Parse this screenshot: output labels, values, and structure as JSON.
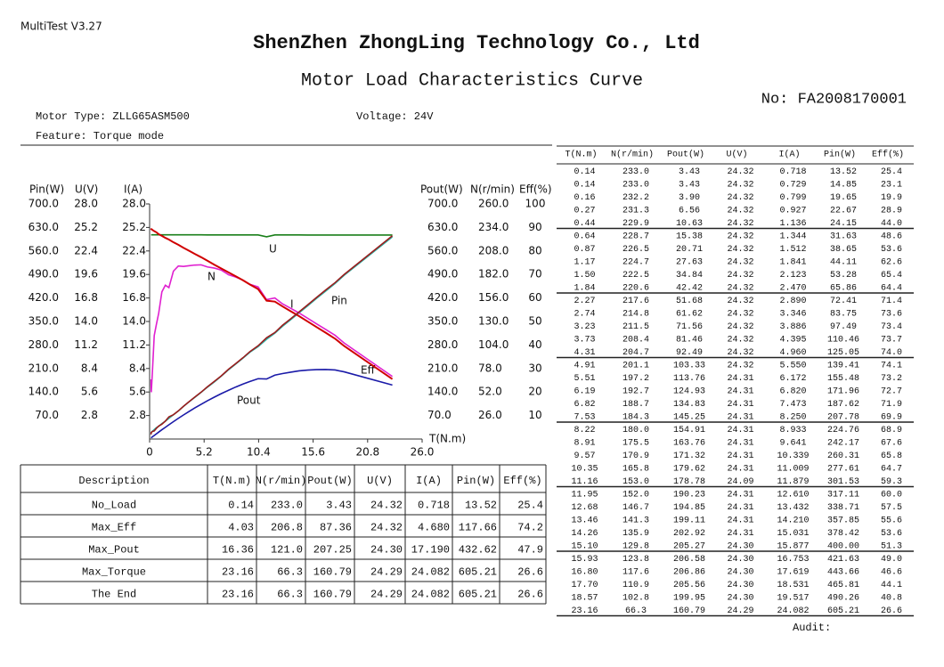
{
  "app_name": "MultiTest V3.27",
  "header": {
    "company": "ShenZhen ZhongLing Technology Co., Ltd",
    "title": "Motor Load Characteristics Curve",
    "report_no": "No: FA2008170001"
  },
  "info": {
    "motor_type": "Motor Type: ZLLG65ASM500",
    "voltage": "Voltage: 24V",
    "feature": "Feature: Torque mode"
  },
  "chart_data": {
    "type": "line",
    "x_label": "T(N.m)",
    "xlim": [
      0,
      26
    ],
    "xticks": [
      0,
      5.2,
      10.4,
      15.6,
      20.8,
      {
        "value": 26,
        "label": "26.0"
      }
    ],
    "left_axes": [
      {
        "label": "Pin(W)",
        "curve_label": "Pin",
        "color": "#9b1c1c",
        "ylim": [
          0,
          700
        ],
        "yticks": [
          {
            "value": 70,
            "label": "70.0"
          },
          {
            "value": 140,
            "label": "140.0"
          },
          {
            "value": 210,
            "label": "210.0"
          },
          {
            "value": 280,
            "label": "280.0"
          },
          {
            "value": 350,
            "label": "350.0"
          },
          {
            "value": 420,
            "label": "420.0"
          },
          {
            "value": 490,
            "label": "490.0"
          },
          {
            "value": 560,
            "label": "560.0"
          },
          {
            "value": 630,
            "label": "630.0"
          },
          {
            "value": 700,
            "label": "700.0"
          }
        ]
      },
      {
        "label": "U(V)",
        "curve_label": "U",
        "color": "#1a7f1a",
        "ylim": [
          0,
          28
        ],
        "yticks": [
          2.8,
          5.6,
          8.4,
          11.2,
          {
            "value": 14,
            "label": "14.0"
          },
          16.8,
          19.6,
          22.4,
          25.2,
          {
            "value": 28,
            "label": "28.0"
          }
        ]
      },
      {
        "label": "I(A)",
        "curve_label": "I",
        "color": "#2bb5a8",
        "ylim": [
          0,
          28
        ],
        "yticks": [
          2.8,
          5.6,
          8.4,
          11.2,
          {
            "value": 14,
            "label": "14.0"
          },
          16.8,
          19.6,
          22.4,
          25.2,
          {
            "value": 28,
            "label": "28.0"
          }
        ]
      }
    ],
    "right_axes": [
      {
        "label": "Pout(W)",
        "curve_label": "Pout",
        "color": "#1a1aa8",
        "ylim": [
          0,
          700
        ],
        "yticks": [
          {
            "value": 70,
            "label": "70.0"
          },
          {
            "value": 140,
            "label": "140.0"
          },
          {
            "value": 210,
            "label": "210.0"
          },
          {
            "value": 280,
            "label": "280.0"
          },
          {
            "value": 350,
            "label": "350.0"
          },
          {
            "value": 420,
            "label": "420.0"
          },
          {
            "value": 490,
            "label": "490.0"
          },
          {
            "value": 560,
            "label": "560.0"
          },
          {
            "value": 630,
            "label": "630.0"
          },
          {
            "value": 700,
            "label": "700.0"
          }
        ]
      },
      {
        "label": "N(r/min)",
        "curve_label": "N",
        "color": "#d00000",
        "ylim": [
          0,
          260
        ],
        "yticks": [
          {
            "value": 26,
            "label": "26.0"
          },
          {
            "value": 52,
            "label": "52.0"
          },
          {
            "value": 78,
            "label": "78.0"
          },
          {
            "value": 104,
            "label": "104.0"
          },
          {
            "value": 130,
            "label": "130.0"
          },
          {
            "value": 156,
            "label": "156.0"
          },
          {
            "value": 182,
            "label": "182.0"
          },
          {
            "value": 208,
            "label": "208.0"
          },
          {
            "value": 234,
            "label": "234.0"
          },
          {
            "value": 260,
            "label": "260.0"
          }
        ]
      },
      {
        "label": "Eff(%)",
        "curve_label": "Eff",
        "color": "#e020d0",
        "ylim": [
          0,
          100
        ],
        "yticks": [
          10,
          20,
          30,
          40,
          50,
          60,
          70,
          80,
          90,
          100
        ]
      }
    ]
  },
  "summary": {
    "header": [
      "Description",
      "T(N.m)",
      "N(r/min)",
      "Pout(W)",
      "U(V)",
      "I(A)",
      "Pin(W)",
      "Eff(%)"
    ],
    "rows": [
      [
        "No_Load",
        "0.14",
        "233.0",
        "3.43",
        "24.32",
        "0.718",
        "13.52",
        "25.4"
      ],
      [
        "Max_Eff",
        "4.03",
        "206.8",
        "87.36",
        "24.32",
        "4.680",
        "117.66",
        "74.2"
      ],
      [
        "Max_Pout",
        "16.36",
        "121.0",
        "207.25",
        "24.30",
        "17.190",
        "432.62",
        "47.9"
      ],
      [
        "Max_Torque",
        "23.16",
        "66.3",
        "160.79",
        "24.29",
        "24.082",
        "605.21",
        "26.6"
      ],
      [
        "The End",
        "23.16",
        "66.3",
        "160.79",
        "24.29",
        "24.082",
        "605.21",
        "26.6"
      ]
    ]
  },
  "data_table": {
    "header": [
      "T(N.m)",
      "N(r/min)",
      "Pout(W)",
      "U(V)",
      "I(A)",
      "Pin(W)",
      "Eff(%)"
    ],
    "rows": [
      [
        "0.14",
        "233.0",
        "3.43",
        "24.32",
        "0.718",
        "13.52",
        "25.4"
      ],
      [
        "0.14",
        "233.0",
        "3.43",
        "24.32",
        "0.729",
        "14.85",
        "23.1"
      ],
      [
        "0.16",
        "232.2",
        "3.90",
        "24.32",
        "0.799",
        "19.65",
        "19.9"
      ],
      [
        "0.27",
        "231.3",
        "6.56",
        "24.32",
        "0.927",
        "22.67",
        "28.9"
      ],
      [
        "0.44",
        "229.9",
        "10.63",
        "24.32",
        "1.136",
        "24.15",
        "44.0"
      ],
      [
        "0.64",
        "228.7",
        "15.38",
        "24.32",
        "1.344",
        "31.63",
        "48.6"
      ],
      [
        "0.87",
        "226.5",
        "20.71",
        "24.32",
        "1.512",
        "38.65",
        "53.6"
      ],
      [
        "1.17",
        "224.7",
        "27.63",
        "24.32",
        "1.841",
        "44.11",
        "62.6"
      ],
      [
        "1.50",
        "222.5",
        "34.84",
        "24.32",
        "2.123",
        "53.28",
        "65.4"
      ],
      [
        "1.84",
        "220.6",
        "42.42",
        "24.32",
        "2.470",
        "65.86",
        "64.4"
      ],
      [
        "2.27",
        "217.6",
        "51.68",
        "24.32",
        "2.890",
        "72.41",
        "71.4"
      ],
      [
        "2.74",
        "214.8",
        "61.62",
        "24.32",
        "3.346",
        "83.75",
        "73.6"
      ],
      [
        "3.23",
        "211.5",
        "71.56",
        "24.32",
        "3.886",
        "97.49",
        "73.4"
      ],
      [
        "3.73",
        "208.4",
        "81.46",
        "24.32",
        "4.395",
        "110.46",
        "73.7"
      ],
      [
        "4.31",
        "204.7",
        "92.49",
        "24.32",
        "4.960",
        "125.05",
        "74.0"
      ],
      [
        "4.91",
        "201.1",
        "103.33",
        "24.32",
        "5.550",
        "139.41",
        "74.1"
      ],
      [
        "5.51",
        "197.2",
        "113.76",
        "24.31",
        "6.172",
        "155.48",
        "73.2"
      ],
      [
        "6.19",
        "192.7",
        "124.93",
        "24.31",
        "6.820",
        "171.96",
        "72.7"
      ],
      [
        "6.82",
        "188.7",
        "134.83",
        "24.31",
        "7.473",
        "187.62",
        "71.9"
      ],
      [
        "7.53",
        "184.3",
        "145.25",
        "24.31",
        "8.250",
        "207.78",
        "69.9"
      ],
      [
        "8.22",
        "180.0",
        "154.91",
        "24.31",
        "8.933",
        "224.76",
        "68.9"
      ],
      [
        "8.91",
        "175.5",
        "163.76",
        "24.31",
        "9.641",
        "242.17",
        "67.6"
      ],
      [
        "9.57",
        "170.9",
        "171.32",
        "24.31",
        "10.339",
        "260.31",
        "65.8"
      ],
      [
        "10.35",
        "165.8",
        "179.62",
        "24.31",
        "11.009",
        "277.61",
        "64.7"
      ],
      [
        "11.16",
        "153.0",
        "178.78",
        "24.09",
        "11.879",
        "301.53",
        "59.3"
      ],
      [
        "11.95",
        "152.0",
        "190.23",
        "24.31",
        "12.610",
        "317.11",
        "60.0"
      ],
      [
        "12.68",
        "146.7",
        "194.85",
        "24.31",
        "13.432",
        "338.71",
        "57.5"
      ],
      [
        "13.46",
        "141.3",
        "199.11",
        "24.31",
        "14.210",
        "357.85",
        "55.6"
      ],
      [
        "14.26",
        "135.9",
        "202.92",
        "24.31",
        "15.031",
        "378.42",
        "53.6"
      ],
      [
        "15.10",
        "129.8",
        "205.27",
        "24.30",
        "15.877",
        "400.00",
        "51.3"
      ],
      [
        "15.93",
        "123.8",
        "206.58",
        "24.30",
        "16.753",
        "421.63",
        "49.0"
      ],
      [
        "16.80",
        "117.6",
        "206.86",
        "24.30",
        "17.619",
        "443.66",
        "46.6"
      ],
      [
        "17.70",
        "110.9",
        "205.56",
        "24.30",
        "18.531",
        "465.81",
        "44.1"
      ],
      [
        "18.57",
        "102.8",
        "199.95",
        "24.30",
        "19.517",
        "490.26",
        "40.8"
      ],
      [
        "23.16",
        "66.3",
        "160.79",
        "24.29",
        "24.082",
        "605.21",
        "26.6"
      ]
    ]
  },
  "audit": "Audit:"
}
